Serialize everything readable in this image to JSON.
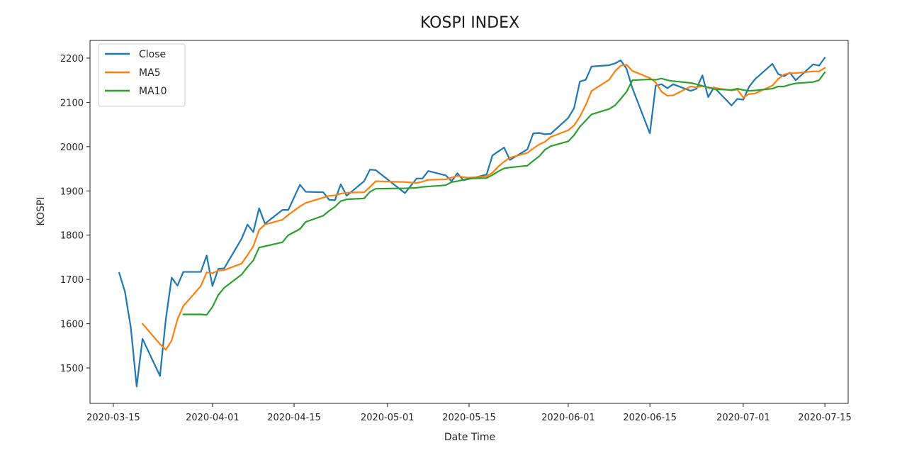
{
  "chart_data": {
    "type": "line",
    "title": "KOSPI INDEX",
    "xlabel": "Date Time",
    "ylabel": "KOSPI",
    "xlim": [
      "2020-03-11",
      "2020-07-19"
    ],
    "ylim": [
      1420,
      2240
    ],
    "x_ticks": [
      "2020-03-15",
      "2020-04-01",
      "2020-04-15",
      "2020-05-01",
      "2020-05-15",
      "2020-06-01",
      "2020-06-15",
      "2020-07-01",
      "2020-07-15"
    ],
    "y_ticks": [
      1500,
      1600,
      1700,
      1800,
      1900,
      2000,
      2100,
      2200
    ],
    "grid": false,
    "legend_position": "top-left",
    "x": [
      "2020-03-16",
      "2020-03-17",
      "2020-03-18",
      "2020-03-19",
      "2020-03-20",
      "2020-03-23",
      "2020-03-24",
      "2020-03-25",
      "2020-03-26",
      "2020-03-27",
      "2020-03-30",
      "2020-03-31",
      "2020-04-01",
      "2020-04-02",
      "2020-04-03",
      "2020-04-06",
      "2020-04-07",
      "2020-04-08",
      "2020-04-09",
      "2020-04-10",
      "2020-04-13",
      "2020-04-14",
      "2020-04-16",
      "2020-04-17",
      "2020-04-20",
      "2020-04-21",
      "2020-04-22",
      "2020-04-23",
      "2020-04-24",
      "2020-04-27",
      "2020-04-28",
      "2020-04-29",
      "2020-05-04",
      "2020-05-06",
      "2020-05-07",
      "2020-05-08",
      "2020-05-11",
      "2020-05-12",
      "2020-05-13",
      "2020-05-14",
      "2020-05-15",
      "2020-05-18",
      "2020-05-19",
      "2020-05-20",
      "2020-05-21",
      "2020-05-22",
      "2020-05-25",
      "2020-05-26",
      "2020-05-27",
      "2020-05-28",
      "2020-05-29",
      "2020-06-01",
      "2020-06-02",
      "2020-06-03",
      "2020-06-04",
      "2020-06-05",
      "2020-06-08",
      "2020-06-09",
      "2020-06-10",
      "2020-06-11",
      "2020-06-12",
      "2020-06-15",
      "2020-06-16",
      "2020-06-17",
      "2020-06-18",
      "2020-06-19",
      "2020-06-22",
      "2020-06-23",
      "2020-06-24",
      "2020-06-25",
      "2020-06-26",
      "2020-06-29",
      "2020-06-30",
      "2020-07-01",
      "2020-07-02",
      "2020-07-03",
      "2020-07-06",
      "2020-07-07",
      "2020-07-08",
      "2020-07-09",
      "2020-07-10",
      "2020-07-13",
      "2020-07-14",
      "2020-07-15"
    ],
    "series": [
      {
        "name": "Close",
        "color": "#1f77b4",
        "values": [
          1715,
          1672,
          1591,
          1458,
          1566,
          1482,
          1610,
          1704,
          1686,
          1717,
          1717,
          1754,
          1685,
          1724,
          1725,
          1792,
          1824,
          1807,
          1861,
          1826,
          1857,
          1857,
          1914,
          1898,
          1897,
          1880,
          1879,
          1915,
          1889,
          1922,
          1948,
          1947,
          1895,
          1928,
          1928,
          1945,
          1935,
          1922,
          1940,
          1924,
          1927,
          1937,
          1980,
          1989,
          1998,
          1970,
          1994,
          2030,
          2031,
          2028,
          2029,
          2065,
          2087,
          2147,
          2151,
          2181,
          2184,
          2188,
          2195,
          2176,
          2132,
          2030,
          2138,
          2141,
          2132,
          2141,
          2126,
          2131,
          2161,
          2112,
          2134,
          2093,
          2108,
          2106,
          2135,
          2152,
          2187,
          2164,
          2159,
          2167,
          2150,
          2186,
          2183,
          2201
        ]
      },
      {
        "name": "MA5",
        "color": "#ff7f0e",
        "values": [
          null,
          null,
          null,
          null,
          1600,
          1554,
          1541,
          1562,
          1610,
          1640,
          1685,
          1716,
          1714,
          1720,
          1721,
          1736,
          1755,
          1775,
          1812,
          1824,
          1835,
          1846,
          1865,
          1873,
          1885,
          1889,
          1890,
          1894,
          1896,
          1897,
          1909,
          1922,
          1920,
          1918,
          1921,
          1925,
          1926,
          1930,
          1934,
          1931,
          1930,
          1933,
          1941,
          1955,
          1966,
          1975,
          1986,
          1996,
          2005,
          2011,
          2022,
          2037,
          2048,
          2068,
          2094,
          2126,
          2151,
          2170,
          2183,
          2185,
          2171,
          2155,
          2145,
          2124,
          2115,
          2116,
          2136,
          2134,
          2137,
          2133,
          2133,
          2127,
          2129,
          2111,
          2119,
          2120,
          2138,
          2153,
          2163,
          2166,
          2166,
          2170,
          2170,
          2178
        ]
      },
      {
        "name": "MA10",
        "color": "#2ca02c",
        "values": [
          null,
          null,
          null,
          null,
          null,
          null,
          null,
          null,
          null,
          1621,
          1621,
          1620,
          1638,
          1665,
          1681,
          1711,
          1728,
          1743,
          1772,
          1775,
          1784,
          1800,
          1814,
          1830,
          1844,
          1855,
          1864,
          1877,
          1881,
          1883,
          1898,
          1905,
          1906,
          1907,
          1909,
          1910,
          1913,
          1920,
          1922,
          1925,
          1928,
          1929,
          1936,
          1944,
          1951,
          1953,
          1957,
          1968,
          1978,
          1993,
          2001,
          2012,
          2026,
          2045,
          2059,
          2073,
          2085,
          2093,
          2108,
          2124,
          2150,
          2152,
          2151,
          2154,
          2150,
          2148,
          2144,
          2141,
          2137,
          2134,
          2130,
          2128,
          2131,
          2128,
          2126,
          2127,
          2131,
          2136,
          2136,
          2140,
          2143,
          2146,
          2150,
          2168
        ]
      }
    ]
  }
}
